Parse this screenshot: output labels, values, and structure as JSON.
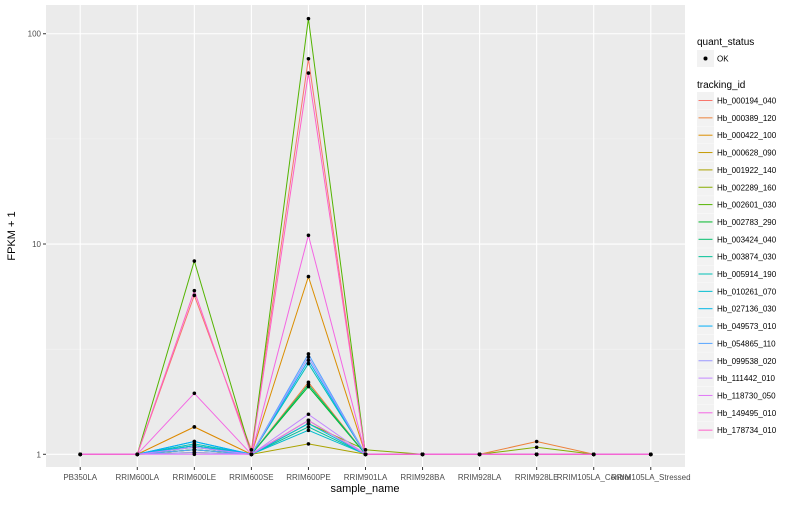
{
  "chart_data": {
    "type": "line",
    "xlabel": "sample_name",
    "ylabel": "FPKM + 1",
    "y_scale": "log10",
    "ylim": [
      0.87,
      137
    ],
    "y_ticks": [
      {
        "value": 1,
        "label": "1"
      },
      {
        "value": 10,
        "label": "10"
      },
      {
        "value": 100,
        "label": "100"
      }
    ],
    "grid": true,
    "legend_position": "right",
    "categories": [
      "PB350LA",
      "RRIM600LA",
      "RRIM600LE",
      "RRIM600SE",
      "RRIM600PE",
      "RRIM901LA",
      "RRIM928BA",
      "RRIM928LA",
      "RRIM928LE",
      "RRIM105LA_Control",
      "RRIM105LA_Stressed"
    ],
    "category_labels": [
      "PB350LA",
      "RRIM600LA",
      "RRIM600LE",
      "RRIM600SE",
      "RRIM600PE",
      "RRIM901LA",
      "RRIM928BA",
      "RRIM928LA",
      "RRIM928LE",
      "RRIM105LA_Control",
      "RRIM105LA_Stressed"
    ],
    "legend_quant": {
      "title": "quant_status",
      "items": [
        "OK"
      ]
    },
    "legend_title": "tracking_id",
    "colors": [
      "#F8766D",
      "#EC823C",
      "#DB8E00",
      "#C59900",
      "#AAA300",
      "#87AC00",
      "#53B400",
      "#00B929",
      "#00BE6C",
      "#00C096",
      "#00C0B6",
      "#00BDD0",
      "#00B6E6",
      "#00AEF8",
      "#55A4FF",
      "#9A97FF",
      "#C387FF",
      "#E076F6",
      "#F466E3",
      "#FF61C9",
      "#F8766D"
    ],
    "series": [
      {
        "name": "Hb_000194_040",
        "values": [
          1,
          1,
          5.7,
          1.05,
          76,
          1,
          1,
          1,
          1,
          1,
          1
        ]
      },
      {
        "name": "Hb_000389_120",
        "values": [
          1,
          1,
          1.35,
          1,
          2.2,
          1,
          1,
          1,
          1.15,
          1,
          1
        ]
      },
      {
        "name": "Hb_000422_100",
        "values": [
          1,
          1,
          1.35,
          1,
          7,
          1,
          1,
          1,
          1,
          1,
          1
        ]
      },
      {
        "name": "Hb_000628_090",
        "values": [
          1,
          1,
          1.05,
          1,
          1.45,
          1,
          1,
          1,
          1,
          1,
          1
        ]
      },
      {
        "name": "Hb_001922_140",
        "values": [
          1,
          1,
          1.02,
          1,
          1.12,
          1,
          1,
          1,
          1,
          1,
          1
        ]
      },
      {
        "name": "Hb_002289_160",
        "values": [
          1,
          1,
          1.05,
          1,
          1.4,
          1.05,
          1,
          1,
          1.08,
          1,
          1
        ]
      },
      {
        "name": "Hb_002601_030",
        "values": [
          1,
          1,
          8.3,
          1,
          118,
          1,
          1,
          1,
          1,
          1,
          1
        ]
      },
      {
        "name": "Hb_002783_290",
        "values": [
          1,
          1,
          1.1,
          1,
          2.1,
          1,
          1,
          1,
          1,
          1,
          1
        ]
      },
      {
        "name": "Hb_003424_040",
        "values": [
          1,
          1,
          1.05,
          1,
          2.15,
          1,
          1,
          1,
          1,
          1,
          1
        ]
      },
      {
        "name": "Hb_003874_030",
        "values": [
          1,
          1,
          1.08,
          1,
          1.35,
          1,
          1,
          1,
          1,
          1,
          1
        ]
      },
      {
        "name": "Hb_005914_190",
        "values": [
          1,
          1,
          1.12,
          1,
          2.7,
          1,
          1,
          1,
          1,
          1,
          1
        ]
      },
      {
        "name": "Hb_010261_070",
        "values": [
          1,
          1,
          1.15,
          1,
          1.3,
          1,
          1,
          1,
          1,
          1,
          1
        ]
      },
      {
        "name": "Hb_027136_030",
        "values": [
          1,
          1,
          1.1,
          1,
          1.4,
          1,
          1,
          1,
          1,
          1,
          1
        ]
      },
      {
        "name": "Hb_049573_010",
        "values": [
          1,
          1,
          1.15,
          1,
          2.8,
          1,
          1,
          1,
          1,
          1,
          1
        ]
      },
      {
        "name": "Hb_054865_110",
        "values": [
          1,
          1,
          1.05,
          1,
          3.0,
          1,
          1,
          1,
          1,
          1,
          1
        ]
      },
      {
        "name": "Hb_099538_020",
        "values": [
          1,
          1,
          1.02,
          1,
          2.9,
          1,
          1,
          1,
          1,
          1,
          1
        ]
      },
      {
        "name": "Hb_111442_010",
        "values": [
          1,
          1,
          1.08,
          1,
          1.55,
          1,
          1,
          1,
          1,
          1,
          1
        ]
      },
      {
        "name": "Hb_118730_050",
        "values": [
          1,
          1,
          1.0,
          1,
          1.45,
          1,
          1,
          1,
          1,
          1,
          1
        ]
      },
      {
        "name": "Hb_149495_010",
        "values": [
          1,
          1,
          1.95,
          1,
          11,
          1,
          1,
          1,
          1,
          1,
          1
        ]
      },
      {
        "name": "Hb_178734_010",
        "values": [
          1,
          1,
          6.0,
          1,
          65,
          1,
          1,
          1,
          1,
          1,
          1
        ]
      }
    ]
  }
}
